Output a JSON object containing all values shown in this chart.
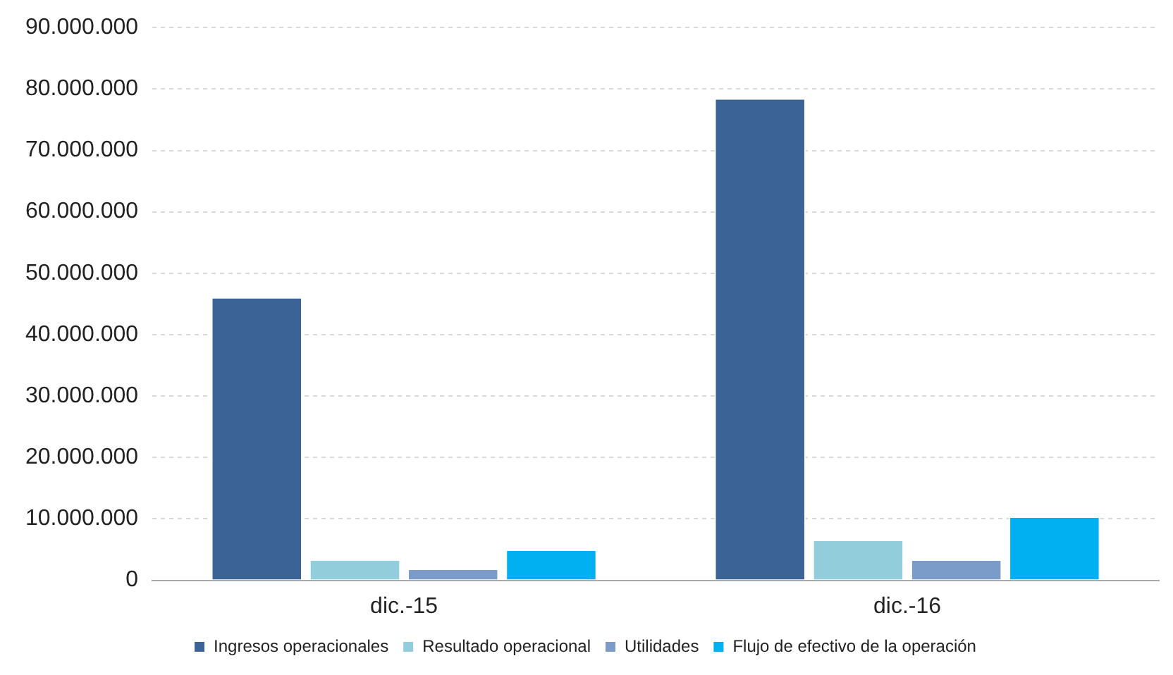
{
  "chart_data": {
    "type": "bar",
    "categories": [
      "dic.-15",
      "dic.-16"
    ],
    "series": [
      {
        "name": "Ingresos operacionales",
        "color": "#3b6395",
        "values": [
          46100000,
          78500000
        ]
      },
      {
        "name": "Resultado operacional",
        "color": "#92cddc",
        "values": [
          3400000,
          6600000
        ]
      },
      {
        "name": "Utilidades",
        "color": "#7b9bc8",
        "values": [
          1900000,
          3400000
        ]
      },
      {
        "name": "Flujo de efectivo de la operación",
        "color": "#00b0f0",
        "values": [
          5000000,
          10400000
        ]
      }
    ],
    "ylim": [
      0,
      90000000
    ],
    "yticks": [
      {
        "value": 0,
        "label": "0"
      },
      {
        "value": 10000000,
        "label": "10.000.000"
      },
      {
        "value": 20000000,
        "label": "20.000.000"
      },
      {
        "value": 30000000,
        "label": "30.000.000"
      },
      {
        "value": 40000000,
        "label": "40.000.000"
      },
      {
        "value": 50000000,
        "label": "50.000.000"
      },
      {
        "value": 60000000,
        "label": "60.000.000"
      },
      {
        "value": 70000000,
        "label": "70.000.000"
      },
      {
        "value": 80000000,
        "label": "80.000.000"
      },
      {
        "value": 90000000,
        "label": "90.000.000"
      }
    ],
    "grid": "y",
    "legend": "bottom"
  }
}
